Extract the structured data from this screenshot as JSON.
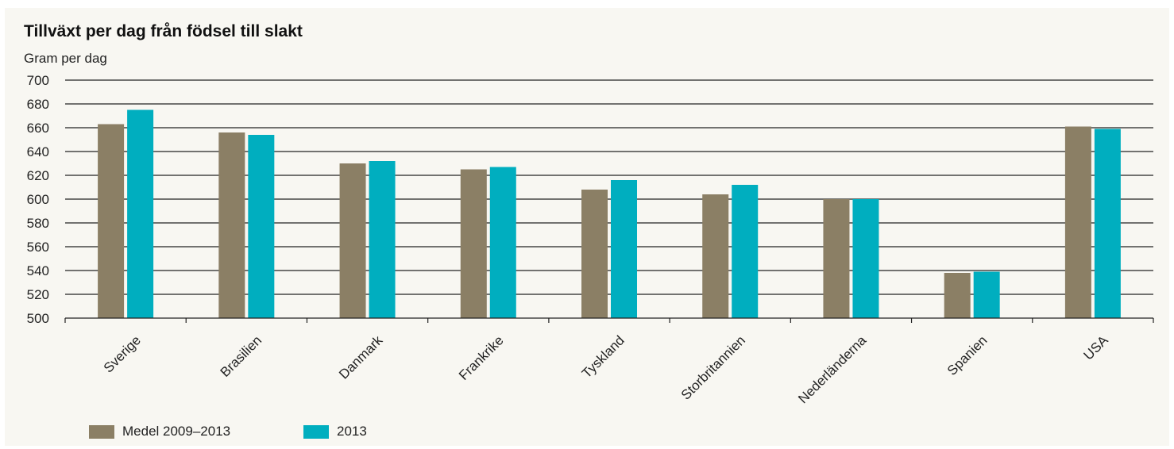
{
  "chart_data": {
    "type": "bar",
    "title": "Tillväxt per dag från födsel till slakt",
    "ylabel": "Gram per dag",
    "xlabel": "",
    "ylim": [
      500,
      700
    ],
    "yticks": [
      500,
      520,
      540,
      560,
      580,
      600,
      620,
      640,
      660,
      680,
      700
    ],
    "grid": true,
    "legend_position": "bottom-left",
    "categories": [
      "Sverige",
      "Brasilien",
      "Danmark",
      "Frankrike",
      "Tyskland",
      "Storbritannien",
      "Nederländerna",
      "Spanien",
      "USA"
    ],
    "series": [
      {
        "name": "Medel 2009–2013",
        "color": "#8b7f65",
        "values": [
          663,
          656,
          630,
          625,
          608,
          604,
          600,
          538,
          661
        ]
      },
      {
        "name": "2013",
        "color": "#00aebf",
        "values": [
          675,
          654,
          632,
          627,
          616,
          612,
          600,
          539,
          659
        ]
      }
    ]
  }
}
